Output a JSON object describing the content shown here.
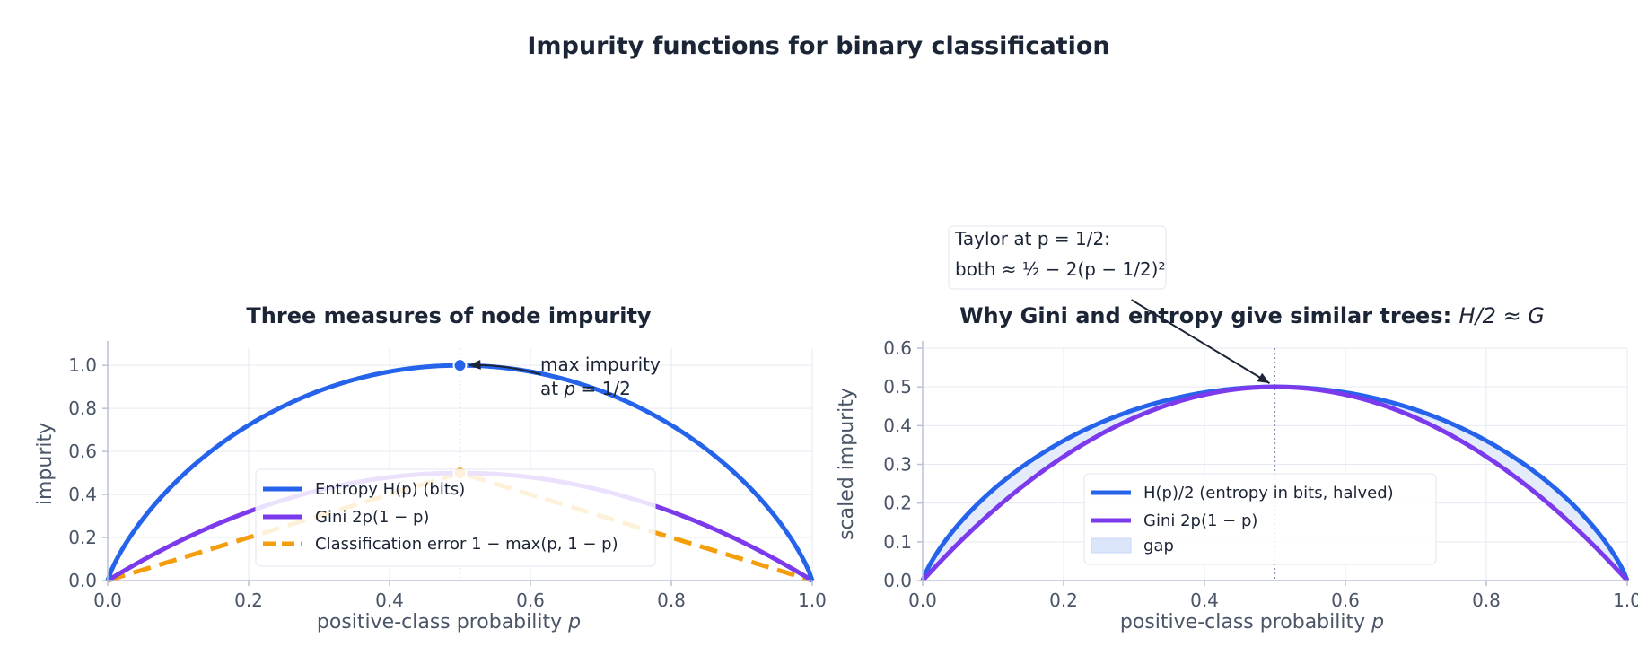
{
  "figure": {
    "title": "Impurity functions for binary classification"
  },
  "chart_data": [
    {
      "type": "line",
      "title": "Three measures of node impurity",
      "xlabel": "positive-class probability  p",
      "ylabel": "impurity",
      "xlim": [
        0,
        1
      ],
      "ylim": [
        0,
        1.08
      ],
      "xticks": [
        "0.0",
        "0.2",
        "0.4",
        "0.6",
        "0.8",
        "1.0"
      ],
      "yticks": [
        "0.0",
        "0.2",
        "0.4",
        "0.6",
        "0.8",
        "1.0"
      ],
      "grid": true,
      "legend_position": "bottom-center",
      "vertical_marker_x": 0.5,
      "series": [
        {
          "name": "Entropy  H(p)  (bits)",
          "function": "entropy_bits",
          "color": "#2563eb",
          "style": "solid",
          "x": [
            0.0,
            0.1,
            0.2,
            0.3,
            0.4,
            0.5,
            0.6,
            0.7,
            0.8,
            0.9,
            1.0
          ],
          "values": [
            0.0,
            0.469,
            0.722,
            0.881,
            0.971,
            1.0,
            0.971,
            0.881,
            0.722,
            0.469,
            0.0
          ]
        },
        {
          "name": "Gini  2p(1 − p)",
          "function": "gini",
          "color": "#7c3aed",
          "style": "solid",
          "x": [
            0.0,
            0.1,
            0.2,
            0.3,
            0.4,
            0.5,
            0.6,
            0.7,
            0.8,
            0.9,
            1.0
          ],
          "values": [
            0.0,
            0.18,
            0.32,
            0.42,
            0.48,
            0.5,
            0.48,
            0.42,
            0.32,
            0.18,
            0.0
          ]
        },
        {
          "name": "Classification error  1 − max(p, 1 − p)",
          "function": "misclass",
          "color": "#f59e0b",
          "style": "dashed",
          "x": [
            0.0,
            0.1,
            0.2,
            0.3,
            0.4,
            0.5,
            0.6,
            0.7,
            0.8,
            0.9,
            1.0
          ],
          "values": [
            0.0,
            0.1,
            0.2,
            0.3,
            0.4,
            0.5,
            0.4,
            0.3,
            0.2,
            0.1,
            0.0
          ]
        }
      ],
      "markers": [
        {
          "x": 0.5,
          "y": 1.0,
          "color": "#2563eb"
        },
        {
          "x": 0.5,
          "y": 0.5,
          "color": "#f59e0b"
        }
      ],
      "annotation": {
        "line1": "max impurity",
        "line2_prefix": "at ",
        "line2_var": "p",
        "line2_suffix": " = 1/2",
        "x": 0.5,
        "y": 1.0
      }
    },
    {
      "type": "line",
      "title_prefix": "Why Gini and entropy give similar trees: ",
      "title_math": "H/2 ≈ G",
      "xlabel": "positive-class probability  p",
      "ylabel": "scaled impurity",
      "xlim": [
        0,
        1
      ],
      "ylim": [
        0,
        0.6
      ],
      "xticks": [
        "0.0",
        "0.2",
        "0.4",
        "0.6",
        "0.8",
        "1.0"
      ],
      "yticks": [
        "0.0",
        "0.1",
        "0.2",
        "0.3",
        "0.4",
        "0.5",
        "0.6"
      ],
      "grid": true,
      "legend_position": "bottom-center",
      "vertical_marker_x": 0.5,
      "series": [
        {
          "name": "H(p)/2  (entropy in bits, halved)",
          "function": "half_entropy",
          "color": "#2563eb",
          "style": "solid",
          "x": [
            0.0,
            0.1,
            0.2,
            0.3,
            0.4,
            0.5,
            0.6,
            0.7,
            0.8,
            0.9,
            1.0
          ],
          "values": [
            0.0,
            0.234,
            0.361,
            0.441,
            0.485,
            0.5,
            0.485,
            0.441,
            0.361,
            0.234,
            0.0
          ]
        },
        {
          "name": "Gini  2p(1 − p)",
          "function": "gini",
          "color": "#7c3aed",
          "style": "solid",
          "x": [
            0.0,
            0.1,
            0.2,
            0.3,
            0.4,
            0.5,
            0.6,
            0.7,
            0.8,
            0.9,
            1.0
          ],
          "values": [
            0.0,
            0.18,
            0.32,
            0.42,
            0.48,
            0.5,
            0.48,
            0.42,
            0.32,
            0.18,
            0.0
          ]
        }
      ],
      "fill_between": {
        "name": "gap",
        "color": "#dbe6fb"
      },
      "annotation": {
        "line1": "Taylor at p = 1/2:",
        "line2": "both  ≈ ½ − 2(p − 1/2)²",
        "x": 0.5,
        "y": 0.5
      }
    }
  ]
}
